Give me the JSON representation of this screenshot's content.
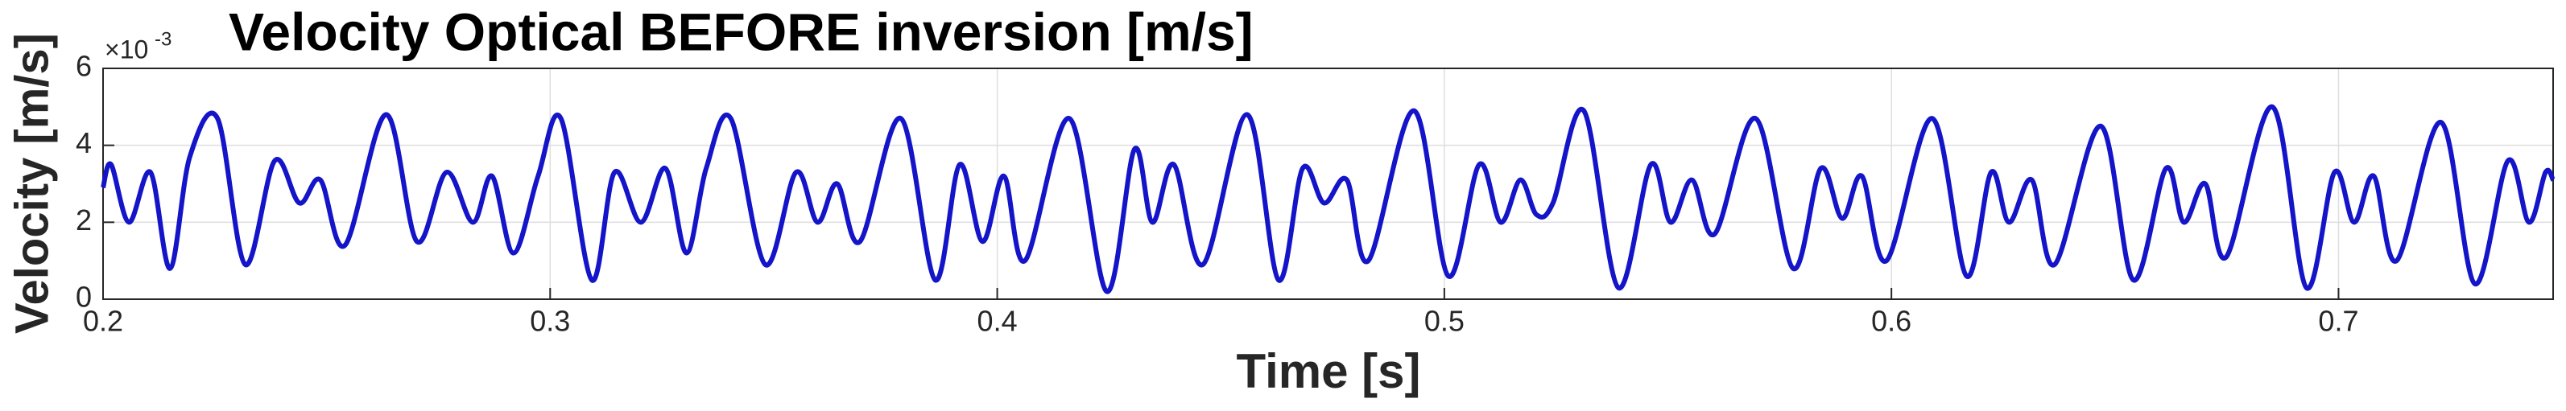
{
  "chart_data": {
    "type": "line",
    "title": "Velocity Optical BEFORE inversion [m/s]",
    "x_label": "Time [s]",
    "y_label": "Velocity [m/s]",
    "y_exponent_base": "×10",
    "y_exponent_power": "-3",
    "xlim": [
      0.2,
      0.748
    ],
    "xticks": [
      0.2,
      0.3,
      0.4,
      0.5,
      0.6,
      0.7
    ],
    "ylim": [
      0,
      6
    ],
    "yticks": [
      0,
      2,
      4,
      6
    ],
    "grid": true,
    "x": [
      0.2,
      0.2018,
      0.2058,
      0.2106,
      0.215,
      0.2194,
      0.2256,
      0.2318,
      0.2384,
      0.2439,
      0.2486,
      0.2541,
      0.2633,
      0.2702,
      0.2768,
      0.2827,
      0.287,
      0.2918,
      0.2973,
      0.3024,
      0.3093,
      0.3144,
      0.3203,
      0.3258,
      0.3305,
      0.3349,
      0.3404,
      0.3481,
      0.355,
      0.3598,
      0.3642,
      0.3693,
      0.3784,
      0.3861,
      0.3916,
      0.3967,
      0.4015,
      0.4062,
      0.4161,
      0.4245,
      0.4307,
      0.4347,
      0.4395,
      0.446,
      0.4559,
      0.4629,
      0.4683,
      0.4731,
      0.4782,
      0.483,
      0.4932,
      0.5009,
      0.5078,
      0.5126,
      0.517,
      0.5206,
      0.5243,
      0.5312,
      0.5389,
      0.5462,
      0.5506,
      0.5554,
      0.5605,
      0.5696,
      0.578,
      0.5842,
      0.589,
      0.5934,
      0.5989,
      0.6091,
      0.6168,
      0.6223,
      0.6263,
      0.6314,
      0.6365,
      0.6468,
      0.6541,
      0.6614,
      0.6654,
      0.6702,
      0.6749,
      0.6852,
      0.6928,
      0.6991,
      0.7035,
      0.7079,
      0.713,
      0.7229,
      0.7305,
      0.7379,
      0.7426,
      0.7463,
      0.748
    ],
    "series": [
      {
        "color": "#1414c8",
        "values": [
          2.9,
          3.5,
          2.0,
          3.3,
          0.8,
          3.7,
          4.7,
          0.9,
          3.6,
          2.5,
          3.1,
          1.4,
          4.8,
          1.5,
          3.3,
          2.0,
          3.2,
          1.2,
          3.2,
          4.7,
          0.5,
          3.3,
          2.0,
          3.4,
          1.2,
          3.4,
          4.7,
          0.9,
          3.3,
          2.0,
          3.0,
          1.5,
          4.7,
          0.5,
          3.5,
          1.5,
          3.2,
          1.0,
          4.7,
          0.2,
          3.9,
          2.0,
          3.5,
          0.9,
          4.8,
          0.5,
          3.4,
          2.5,
          3.1,
          1.0,
          4.9,
          0.6,
          3.5,
          2.0,
          3.1,
          2.2,
          2.5,
          4.9,
          0.3,
          3.5,
          2.0,
          3.1,
          1.7,
          4.7,
          0.8,
          3.4,
          2.1,
          3.2,
          1.0,
          4.7,
          0.6,
          3.3,
          2.0,
          3.1,
          0.9,
          4.5,
          0.5,
          3.4,
          2.0,
          3.0,
          1.1,
          5.0,
          0.3,
          3.3,
          2.0,
          3.2,
          1.0,
          4.6,
          0.4,
          3.6,
          2.0,
          3.3,
          3.1
        ]
      }
    ]
  }
}
